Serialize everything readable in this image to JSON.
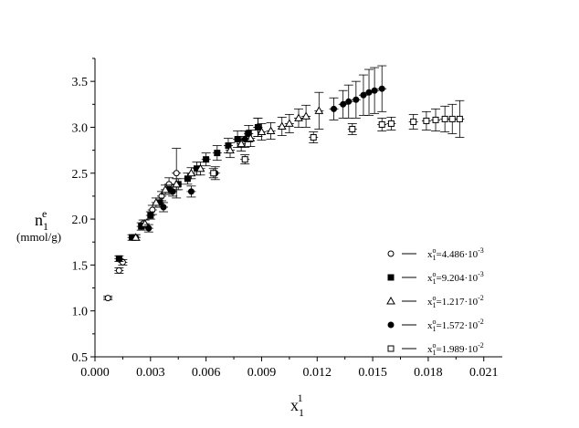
{
  "chart_data": {
    "type": "scatter",
    "xlabel": {
      "base": "x",
      "sub": "1",
      "sup": "1"
    },
    "ylabel": {
      "base": "n",
      "sub": "1",
      "sup": "e",
      "unit": "(mmol/g)"
    },
    "xlim": [
      0.0,
      0.022
    ],
    "ylim": [
      0.5,
      3.75
    ],
    "xticks": [
      "0.000",
      "0.003",
      "0.006",
      "0.009",
      "0.012",
      "0.015",
      "0.018",
      "0.021"
    ],
    "yticks": [
      "0.5",
      "1.0",
      "1.5",
      "2.0",
      "2.5",
      "3.0",
      "3.5"
    ],
    "grid": false,
    "legend_position": "bottom-right",
    "series": [
      {
        "name": "x₁⁰=4.486·10⁻³",
        "legend": {
          "base": "x",
          "sub": "1",
          "sup": "o",
          "value": "=4.486·10",
          "exp": "-3"
        },
        "marker": "circle-open",
        "points": [
          [
            0.0007,
            1.14,
            0.02
          ],
          [
            0.0013,
            1.44,
            0.03
          ],
          [
            0.0015,
            1.53,
            0.03
          ],
          [
            0.0022,
            1.8,
            0.03
          ],
          [
            0.0026,
            1.95,
            0.04
          ],
          [
            0.0031,
            2.1,
            0.05
          ],
          [
            0.0036,
            2.25,
            0.05
          ],
          [
            0.004,
            2.38,
            0.07
          ],
          [
            0.0044,
            2.5,
            0.27
          ]
        ]
      },
      {
        "name": "x₁⁰=9.204·10⁻³",
        "legend": {
          "base": "x",
          "sub": "1",
          "sup": "o",
          "value": "=9.204·10",
          "exp": "-3"
        },
        "marker": "square-filled",
        "points": [
          [
            0.0013,
            1.57,
            0.03
          ],
          [
            0.002,
            1.8,
            0.03
          ],
          [
            0.0025,
            1.92,
            0.04
          ],
          [
            0.003,
            2.04,
            0.04
          ],
          [
            0.0035,
            2.18,
            0.05
          ],
          [
            0.004,
            2.32,
            0.05
          ],
          [
            0.0045,
            2.38,
            0.06
          ],
          [
            0.005,
            2.44,
            0.06
          ],
          [
            0.0055,
            2.55,
            0.07
          ],
          [
            0.006,
            2.65,
            0.07
          ],
          [
            0.0066,
            2.72,
            0.08
          ],
          [
            0.0072,
            2.8,
            0.08
          ],
          [
            0.0077,
            2.87,
            0.09
          ],
          [
            0.0083,
            2.93,
            0.09
          ],
          [
            0.0088,
            3.0,
            0.1
          ]
        ]
      },
      {
        "name": "x₁⁰=1.217·10⁻²",
        "legend": {
          "base": "x",
          "sub": "1",
          "sup": "o",
          "value": "=1.217·10",
          "exp": "-2"
        },
        "marker": "triangle-open",
        "points": [
          [
            0.0022,
            1.8,
            0.03
          ],
          [
            0.0027,
            1.95,
            0.04
          ],
          [
            0.0033,
            2.18,
            0.05
          ],
          [
            0.0038,
            2.32,
            0.05
          ],
          [
            0.0044,
            2.38,
            0.06
          ],
          [
            0.0052,
            2.5,
            0.06
          ],
          [
            0.0057,
            2.55,
            0.07
          ],
          [
            0.0073,
            2.75,
            0.08
          ],
          [
            0.0079,
            2.82,
            0.08
          ],
          [
            0.0084,
            2.88,
            0.09
          ],
          [
            0.009,
            2.95,
            0.09
          ],
          [
            0.0095,
            2.96,
            0.09
          ],
          [
            0.0101,
            3.01,
            0.1
          ],
          [
            0.0105,
            3.04,
            0.1
          ],
          [
            0.011,
            3.1,
            0.1
          ],
          [
            0.0114,
            3.12,
            0.12
          ],
          [
            0.0121,
            3.18,
            0.2
          ]
        ]
      },
      {
        "name": "x₁⁰=1.572·10⁻²",
        "legend": {
          "base": "x",
          "sub": "1",
          "sup": "o",
          "value": "=1.572·10",
          "exp": "-2"
        },
        "marker": "circle-filled",
        "points": [
          [
            0.0029,
            1.9,
            0.04
          ],
          [
            0.0037,
            2.13,
            0.05
          ],
          [
            0.0042,
            2.3,
            0.05
          ],
          [
            0.0052,
            2.3,
            0.06
          ],
          [
            0.0065,
            2.5,
            0.07
          ],
          [
            0.0081,
            2.87,
            0.09
          ],
          [
            0.0088,
            3.0,
            0.1
          ],
          [
            0.0129,
            3.2,
            0.12
          ],
          [
            0.0134,
            3.25,
            0.15
          ],
          [
            0.0137,
            3.28,
            0.18
          ],
          [
            0.0141,
            3.3,
            0.2
          ],
          [
            0.0145,
            3.35,
            0.22
          ],
          [
            0.0148,
            3.38,
            0.25
          ],
          [
            0.0151,
            3.4,
            0.25
          ],
          [
            0.0155,
            3.42,
            0.25
          ]
        ]
      },
      {
        "name": "x₁⁰=1.989·10⁻²",
        "legend": {
          "base": "x",
          "sub": "1",
          "sup": "o",
          "value": "=1.989·10",
          "exp": "-2"
        },
        "marker": "square-open",
        "points": [
          [
            0.0064,
            2.5,
            0.05
          ],
          [
            0.0081,
            2.65,
            0.05
          ],
          [
            0.0118,
            2.89,
            0.06
          ],
          [
            0.0139,
            2.98,
            0.06
          ],
          [
            0.0155,
            3.03,
            0.07
          ],
          [
            0.016,
            3.04,
            0.07
          ],
          [
            0.0172,
            3.06,
            0.08
          ],
          [
            0.0179,
            3.07,
            0.1
          ],
          [
            0.0184,
            3.08,
            0.12
          ],
          [
            0.0189,
            3.09,
            0.14
          ],
          [
            0.0193,
            3.09,
            0.16
          ],
          [
            0.0197,
            3.09,
            0.2
          ]
        ]
      }
    ]
  }
}
